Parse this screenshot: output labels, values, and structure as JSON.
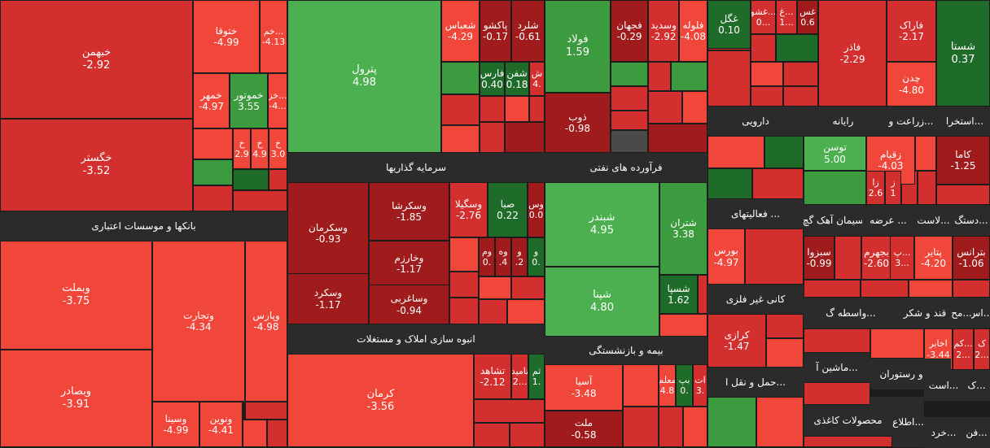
{
  "colors": {
    "dark_red": "#a01c1c",
    "red": "#d42f2f",
    "light_red": "#f1463a",
    "dark_green": "#1e6b2a",
    "green": "#3c9a3f",
    "light_green": "#4cb050",
    "gray": "#4a4a4a",
    "header_bg": "#2b2b2b"
  },
  "sectors": [
    {
      "name": "بانکها و موسسات اعتباری"
    },
    {
      "name": "سرمایه گذاریها"
    },
    {
      "name": "فرآورده های نفتی"
    },
    {
      "name": "انبوه سازی املاک و مستغلات"
    },
    {
      "name": "بیمه و بازنشستگی"
    },
    {
      "name": "دارویی"
    },
    {
      "name": "رایانه"
    },
    {
      "name": "زراعت و..."
    },
    {
      "name": "استخرا..."
    },
    {
      "name": "فعالیتهای ..."
    },
    {
      "name": "دستگ..."
    },
    {
      "name": "لاست..."
    },
    {
      "name": "عرضه ..."
    },
    {
      "name": "سیمان آهک گچ"
    },
    {
      "name": "کانی غیر فلزی"
    },
    {
      "name": "مح..."
    },
    {
      "name": "اس..."
    },
    {
      "name": "قند و شکر"
    },
    {
      "name": "واسطه گ..."
    },
    {
      "name": "حمل و نقل ا..."
    },
    {
      "name": "هتل و رستوران"
    },
    {
      "name": "ماشین آ..."
    },
    {
      "name": "است..."
    },
    {
      "name": "ک..."
    },
    {
      "name": "مس..."
    },
    {
      "name": "فن..."
    },
    {
      "name": "خرد..."
    },
    {
      "name": "اطلاع..."
    },
    {
      "name": "محصولات کاغذی"
    }
  ],
  "tiles": [
    {
      "symbol": "خبهمن",
      "change": "-2.92",
      "color": "red"
    },
    {
      "symbol": "خگستر",
      "change": "-3.52",
      "color": "red"
    },
    {
      "symbol": "ختوقا",
      "change": "-4.99",
      "color": "light_red"
    },
    {
      "symbol": "خم...",
      "change": "-4.13",
      "color": "light_red"
    },
    {
      "symbol": "خمهر",
      "change": "-4.97",
      "color": "light_red"
    },
    {
      "symbol": "خموتور",
      "change": "3.55",
      "color": "green"
    },
    {
      "symbol": "خز...",
      "change": "-4...",
      "color": "light_red"
    },
    {
      "symbol": "خ",
      "change": "2.9",
      "color": "light_red"
    },
    {
      "symbol": "خ",
      "change": "4.9",
      "color": "light_red"
    },
    {
      "symbol": "خ",
      "change": "3.0",
      "color": "light_red"
    },
    {
      "symbol": "وبملت",
      "change": "-3.75",
      "color": "light_red"
    },
    {
      "symbol": "وبصادر",
      "change": "-3.91",
      "color": "light_red"
    },
    {
      "symbol": "وتجارت",
      "change": "-4.34",
      "color": "light_red"
    },
    {
      "symbol": "وپارس",
      "change": "-4.98",
      "color": "light_red"
    },
    {
      "symbol": "وسینا",
      "change": "-4.99",
      "color": "light_red"
    },
    {
      "symbol": "ونوین",
      "change": "-4.41",
      "color": "light_red"
    },
    {
      "symbol": "پترول",
      "change": "4.98",
      "color": "light_green"
    },
    {
      "symbol": "شعباس",
      "change": "-4.29",
      "color": "light_red"
    },
    {
      "symbol": "پاکشو",
      "change": "-0.17",
      "color": "dark_red"
    },
    {
      "symbol": "شلرد",
      "change": "-0.61",
      "color": "dark_red"
    },
    {
      "symbol": "فارس",
      "change": "0.40",
      "color": "dark_green"
    },
    {
      "symbol": "شفن",
      "change": "0.18",
      "color": "dark_green"
    },
    {
      "symbol": "ش",
      "change": "4.",
      "color": "red"
    },
    {
      "symbol": "فولاد",
      "change": "1.59",
      "color": "green"
    },
    {
      "symbol": "فجهان",
      "change": "-0.29",
      "color": "dark_red"
    },
    {
      "symbol": "وسدید",
      "change": "-2.92",
      "color": "red"
    },
    {
      "symbol": "فلوله",
      "change": "-4.08",
      "color": "light_red"
    },
    {
      "symbol": "ذوب",
      "change": "-0.98",
      "color": "dark_red"
    },
    {
      "symbol": "وسکرمان",
      "change": "-0.93",
      "color": "dark_red"
    },
    {
      "symbol": "وسکرشا",
      "change": "-1.85",
      "color": "dark_red"
    },
    {
      "symbol": "وسگیلا",
      "change": "-2.76",
      "color": "red"
    },
    {
      "symbol": "صبا",
      "change": "0.22",
      "color": "dark_green"
    },
    {
      "symbol": "وس",
      "change": "0.0",
      "color": "dark_red"
    },
    {
      "symbol": "وخارزم",
      "change": "-1.17",
      "color": "dark_red"
    },
    {
      "symbol": "وم",
      "change": "0.",
      "color": "dark_red"
    },
    {
      "symbol": "وه",
      "change": ".4",
      "color": "dark_red"
    },
    {
      "symbol": "و",
      "change": ".2",
      "color": "dark_red"
    },
    {
      "symbol": "و",
      "change": "0.",
      "color": "dark_green"
    },
    {
      "symbol": "وسکرد",
      "change": "-1.17",
      "color": "dark_red"
    },
    {
      "symbol": "وساغربی",
      "change": "-0.94",
      "color": "dark_red"
    },
    {
      "symbol": "شبندر",
      "change": "4.95",
      "color": "light_green"
    },
    {
      "symbol": "شتران",
      "change": "3.38",
      "color": "green"
    },
    {
      "symbol": "شپنا",
      "change": "4.80",
      "color": "light_green"
    },
    {
      "symbol": "شسپا",
      "change": "1.62",
      "color": "dark_green"
    },
    {
      "symbol": "کرمان",
      "change": "-3.56",
      "color": "light_red"
    },
    {
      "symbol": "تشاهد",
      "change": "-2.12",
      "color": "red"
    },
    {
      "symbol": "تامید",
      "change": "2...",
      "color": "red"
    },
    {
      "symbol": "ثم",
      "change": "1.",
      "color": "dark_green"
    },
    {
      "symbol": "آسیا",
      "change": "-3.48",
      "color": "light_red"
    },
    {
      "symbol": "ملت",
      "change": "-0.58",
      "color": "dark_red"
    },
    {
      "symbol": "معلم",
      "change": "4.8",
      "color": "light_red"
    },
    {
      "symbol": "بپ",
      "change": "0.",
      "color": "dark_green"
    },
    {
      "symbol": "ات",
      "change": "3.",
      "color": "red"
    },
    {
      "symbol": "غگل",
      "change": "0.10",
      "color": "dark_green"
    },
    {
      "symbol": "غشو...",
      "change": "0...",
      "color": "red"
    },
    {
      "symbol": "غ...",
      "change": "1...",
      "color": "red"
    },
    {
      "symbol": "غس",
      "change": "0.6",
      "color": "dark_red"
    },
    {
      "symbol": "فاذر",
      "change": "-2.29",
      "color": "red"
    },
    {
      "symbol": "فاراک",
      "change": "-2.17",
      "color": "red"
    },
    {
      "symbol": "چدن",
      "change": "-4.80",
      "color": "light_red"
    },
    {
      "symbol": "شستا",
      "change": "0.37",
      "color": "dark_green"
    },
    {
      "symbol": "توسن",
      "change": "5.00",
      "color": "light_green"
    },
    {
      "symbol": "زقیام",
      "change": "-4.03",
      "color": "light_red"
    },
    {
      "symbol": "کاما",
      "change": "-1.25",
      "color": "dark_red"
    },
    {
      "symbol": "زا",
      "change": "2.6",
      "color": "red"
    },
    {
      "symbol": "ز",
      "change": "1",
      "color": "red"
    },
    {
      "symbol": "بورس",
      "change": "-4.97",
      "color": "light_red"
    },
    {
      "symbol": "سبزوا",
      "change": "-0.99",
      "color": "dark_red"
    },
    {
      "symbol": "بجهرم",
      "change": "-2.60",
      "color": "red"
    },
    {
      "symbol": "پ...",
      "change": "3...",
      "color": "red"
    },
    {
      "symbol": "پتایر",
      "change": "-4.20",
      "color": "light_red"
    },
    {
      "symbol": "بترانس",
      "change": "-1.06",
      "color": "dark_red"
    },
    {
      "symbol": "کرازی",
      "change": "-1.47",
      "color": "red"
    },
    {
      "symbol": "اخابر",
      "change": "-3.44",
      "color": "light_red"
    },
    {
      "symbol": "کم...",
      "change": "2...",
      "color": "red"
    },
    {
      "symbol": "ک",
      "change": "2...",
      "color": "red"
    }
  ]
}
